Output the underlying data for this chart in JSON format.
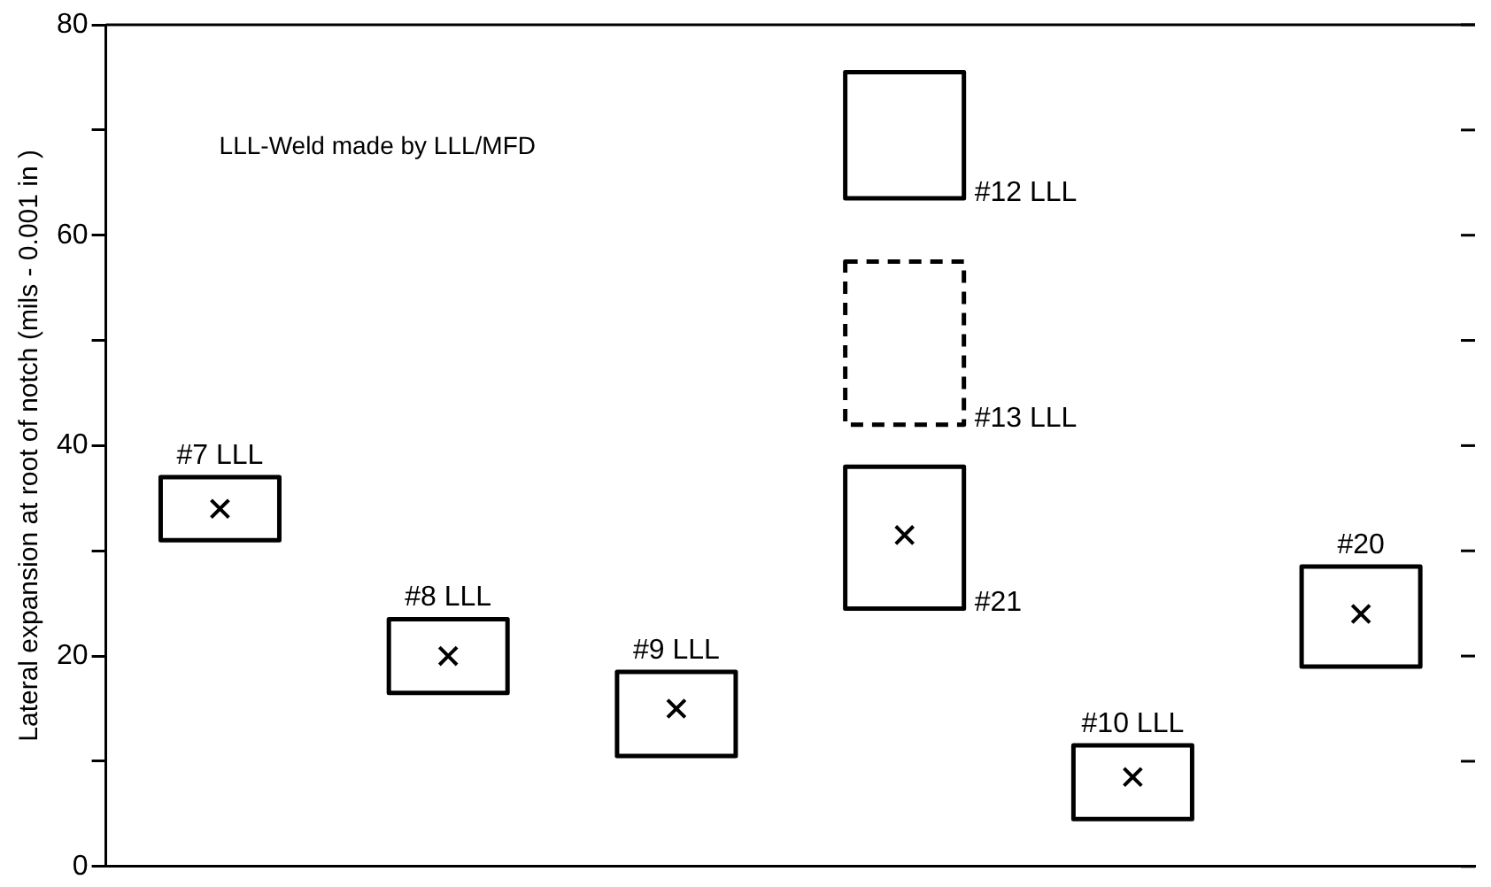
{
  "chart_data": {
    "type": "bar",
    "ylabel": "Lateral expansion at root of notch (mils - 0.001 in )",
    "categories": [
      null,
      null,
      null,
      null,
      null,
      null
    ],
    "series": [
      {
        "name": "#7 LLL",
        "color": "#000000",
        "values": [
          6,
          null,
          null,
          null,
          null,
          null
        ],
        "base": [
          31,
          null,
          null,
          null,
          null,
          null
        ]
      },
      {
        "name": "#8 LLL",
        "color": "#000000",
        "values": [
          null,
          7,
          null,
          null,
          null,
          null
        ],
        "base": [
          null,
          16.5,
          null,
          null,
          null,
          null
        ]
      },
      {
        "name": "#9 LLL",
        "color": "#000000",
        "values": [
          null,
          null,
          8,
          null,
          null,
          null
        ],
        "base": [
          null,
          null,
          10.5,
          null,
          null,
          null
        ]
      },
      {
        "name": "#12 LLL",
        "color": "#000000",
        "values": [
          null,
          null,
          null,
          12,
          null,
          null
        ],
        "base": [
          null,
          null,
          null,
          63.5,
          null,
          null
        ]
      },
      {
        "name": "#13 LLL",
        "color": "#000000",
        "line_style": "dashed",
        "values": [
          null,
          null,
          null,
          15.5,
          null,
          null
        ],
        "base": [
          null,
          null,
          null,
          42,
          null,
          null
        ]
      },
      {
        "name": "#21",
        "color": "#000000",
        "values": [
          null,
          null,
          null,
          13.5,
          null,
          null
        ],
        "base": [
          null,
          null,
          null,
          24.5,
          null,
          null
        ]
      },
      {
        "name": "#10 LLL",
        "color": "#000000",
        "values": [
          null,
          null,
          null,
          null,
          7,
          null
        ],
        "base": [
          null,
          null,
          null,
          null,
          4.5,
          null
        ]
      },
      {
        "name": "#20",
        "color": "#000000",
        "values": [
          null,
          null,
          null,
          null,
          null,
          9.5
        ],
        "base": [
          null,
          null,
          null,
          null,
          null,
          19
        ]
      },
      {
        "type": "scatter",
        "marker": "cross",
        "color": "#000000",
        "values": [
          34,
          20,
          15,
          31.5,
          8.5,
          24
        ]
      }
    ],
    "ylim": [
      0,
      80
    ],
    "yticks": [
      0,
      {
        "value": 10,
        "label": null
      },
      20,
      {
        "value": 30,
        "label": null
      },
      40,
      {
        "value": 50,
        "label": null
      },
      60,
      {
        "value": 70,
        "label": null
      },
      80
    ],
    "annotations": [
      "LLL-Weld made by LLL/MFD"
    ],
    "grid": false,
    "legend": false
  }
}
